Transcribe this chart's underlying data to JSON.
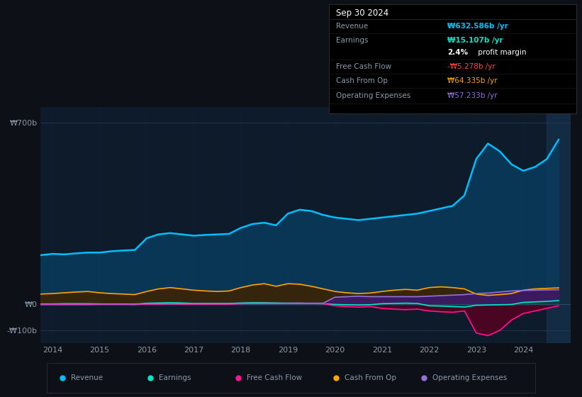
{
  "bg_color": "#0d1117",
  "plot_bg_color": "#0d1b2a",
  "grid_color": "#1e3a5f",
  "text_color": "#8899aa",
  "title_color": "#ffffff",
  "ylim": [
    -150,
    760
  ],
  "revenue_color": "#00bfff",
  "earnings_color": "#00e5cc",
  "free_cash_flow_color": "#ff1493",
  "cash_from_op_color": "#ffa500",
  "operating_expenses_color": "#9370db",
  "revenue_fill_alpha": 0.85,
  "revenue_fill_color": "#0a3a5c",
  "earnings_fill_color": "#004a40",
  "free_cash_flow_fill_color": "#5a0020",
  "cash_from_op_fill_color": "#3d2200",
  "operating_expenses_fill_color": "#3d1a6e",
  "x_tick_years": [
    2014,
    2015,
    2016,
    2017,
    2018,
    2019,
    2020,
    2021,
    2022,
    2023,
    2024
  ],
  "years": [
    2013.75,
    2014.0,
    2014.25,
    2014.5,
    2014.75,
    2015.0,
    2015.25,
    2015.5,
    2015.75,
    2016.0,
    2016.25,
    2016.5,
    2016.75,
    2017.0,
    2017.25,
    2017.5,
    2017.75,
    2018.0,
    2018.25,
    2018.5,
    2018.75,
    2019.0,
    2019.25,
    2019.5,
    2019.75,
    2020.0,
    2020.25,
    2020.5,
    2020.75,
    2021.0,
    2021.25,
    2021.5,
    2021.75,
    2022.0,
    2022.25,
    2022.5,
    2022.75,
    2023.0,
    2023.25,
    2023.5,
    2023.75,
    2024.0,
    2024.25,
    2024.5,
    2024.75
  ],
  "revenue": [
    190,
    195,
    193,
    197,
    200,
    200,
    205,
    208,
    210,
    255,
    270,
    275,
    270,
    265,
    268,
    270,
    272,
    295,
    310,
    315,
    305,
    350,
    365,
    360,
    345,
    335,
    330,
    325,
    330,
    335,
    340,
    345,
    350,
    360,
    370,
    380,
    420,
    560,
    620,
    590,
    540,
    515,
    530,
    560,
    635
  ],
  "cash_from_op": [
    40,
    42,
    45,
    48,
    50,
    45,
    42,
    40,
    38,
    50,
    60,
    65,
    60,
    55,
    52,
    50,
    52,
    65,
    75,
    80,
    70,
    80,
    78,
    70,
    60,
    50,
    45,
    42,
    44,
    50,
    55,
    58,
    55,
    65,
    68,
    65,
    60,
    40,
    35,
    38,
    42,
    55,
    60,
    62,
    64
  ],
  "operating_expenses": [
    2,
    2,
    2,
    2,
    2,
    2,
    2,
    2,
    2,
    3,
    3,
    3,
    3,
    3,
    3,
    3,
    3,
    4,
    4,
    4,
    4,
    5,
    5,
    5,
    5,
    28,
    30,
    32,
    30,
    30,
    30,
    30,
    30,
    32,
    34,
    36,
    38,
    42,
    44,
    48,
    52,
    54,
    55,
    56,
    57
  ],
  "earnings": [
    2,
    2,
    3,
    3,
    3,
    2,
    1,
    1,
    0,
    5,
    6,
    7,
    6,
    4,
    4,
    4,
    4,
    6,
    7,
    7,
    6,
    5,
    5,
    4,
    3,
    0,
    -1,
    -2,
    -1,
    3,
    4,
    5,
    4,
    -5,
    -6,
    -8,
    -10,
    -3,
    -2,
    -1,
    0,
    8,
    10,
    12,
    15
  ],
  "free_cash_flow": [
    -1,
    -1,
    -1,
    -1,
    -1,
    0,
    0,
    0,
    0,
    1,
    1,
    2,
    1,
    1,
    1,
    1,
    1,
    3,
    4,
    5,
    4,
    4,
    5,
    4,
    3,
    -5,
    -8,
    -10,
    -8,
    -15,
    -18,
    -20,
    -18,
    -25,
    -28,
    -30,
    -25,
    -110,
    -120,
    -100,
    -60,
    -35,
    -25,
    -15,
    -5
  ],
  "info_box": {
    "title": "Sep 30 2024",
    "rows": [
      {
        "label": "Revenue",
        "value": "₩632.586b /yr",
        "value_color": "#00bfff"
      },
      {
        "label": "Earnings",
        "value": "₩15.107b /yr",
        "value_color": "#00e5cc"
      },
      {
        "label": "",
        "value": "2.4% profit margin",
        "value_color": "#ffffff"
      },
      {
        "label": "Free Cash Flow",
        "value": "-₩5.278b /yr",
        "value_color": "#ff4444"
      },
      {
        "label": "Cash From Op",
        "value": "₩64.335b /yr",
        "value_color": "#ffa500"
      },
      {
        "label": "Operating Expenses",
        "value": "₩57.233b /yr",
        "value_color": "#9370db"
      }
    ]
  },
  "legend_items": [
    {
      "label": "Revenue",
      "color": "#00bfff"
    },
    {
      "label": "Earnings",
      "color": "#00e5cc"
    },
    {
      "label": "Free Cash Flow",
      "color": "#ff1493"
    },
    {
      "label": "Cash From Op",
      "color": "#ffa500"
    },
    {
      "label": "Operating Expenses",
      "color": "#9370db"
    }
  ]
}
